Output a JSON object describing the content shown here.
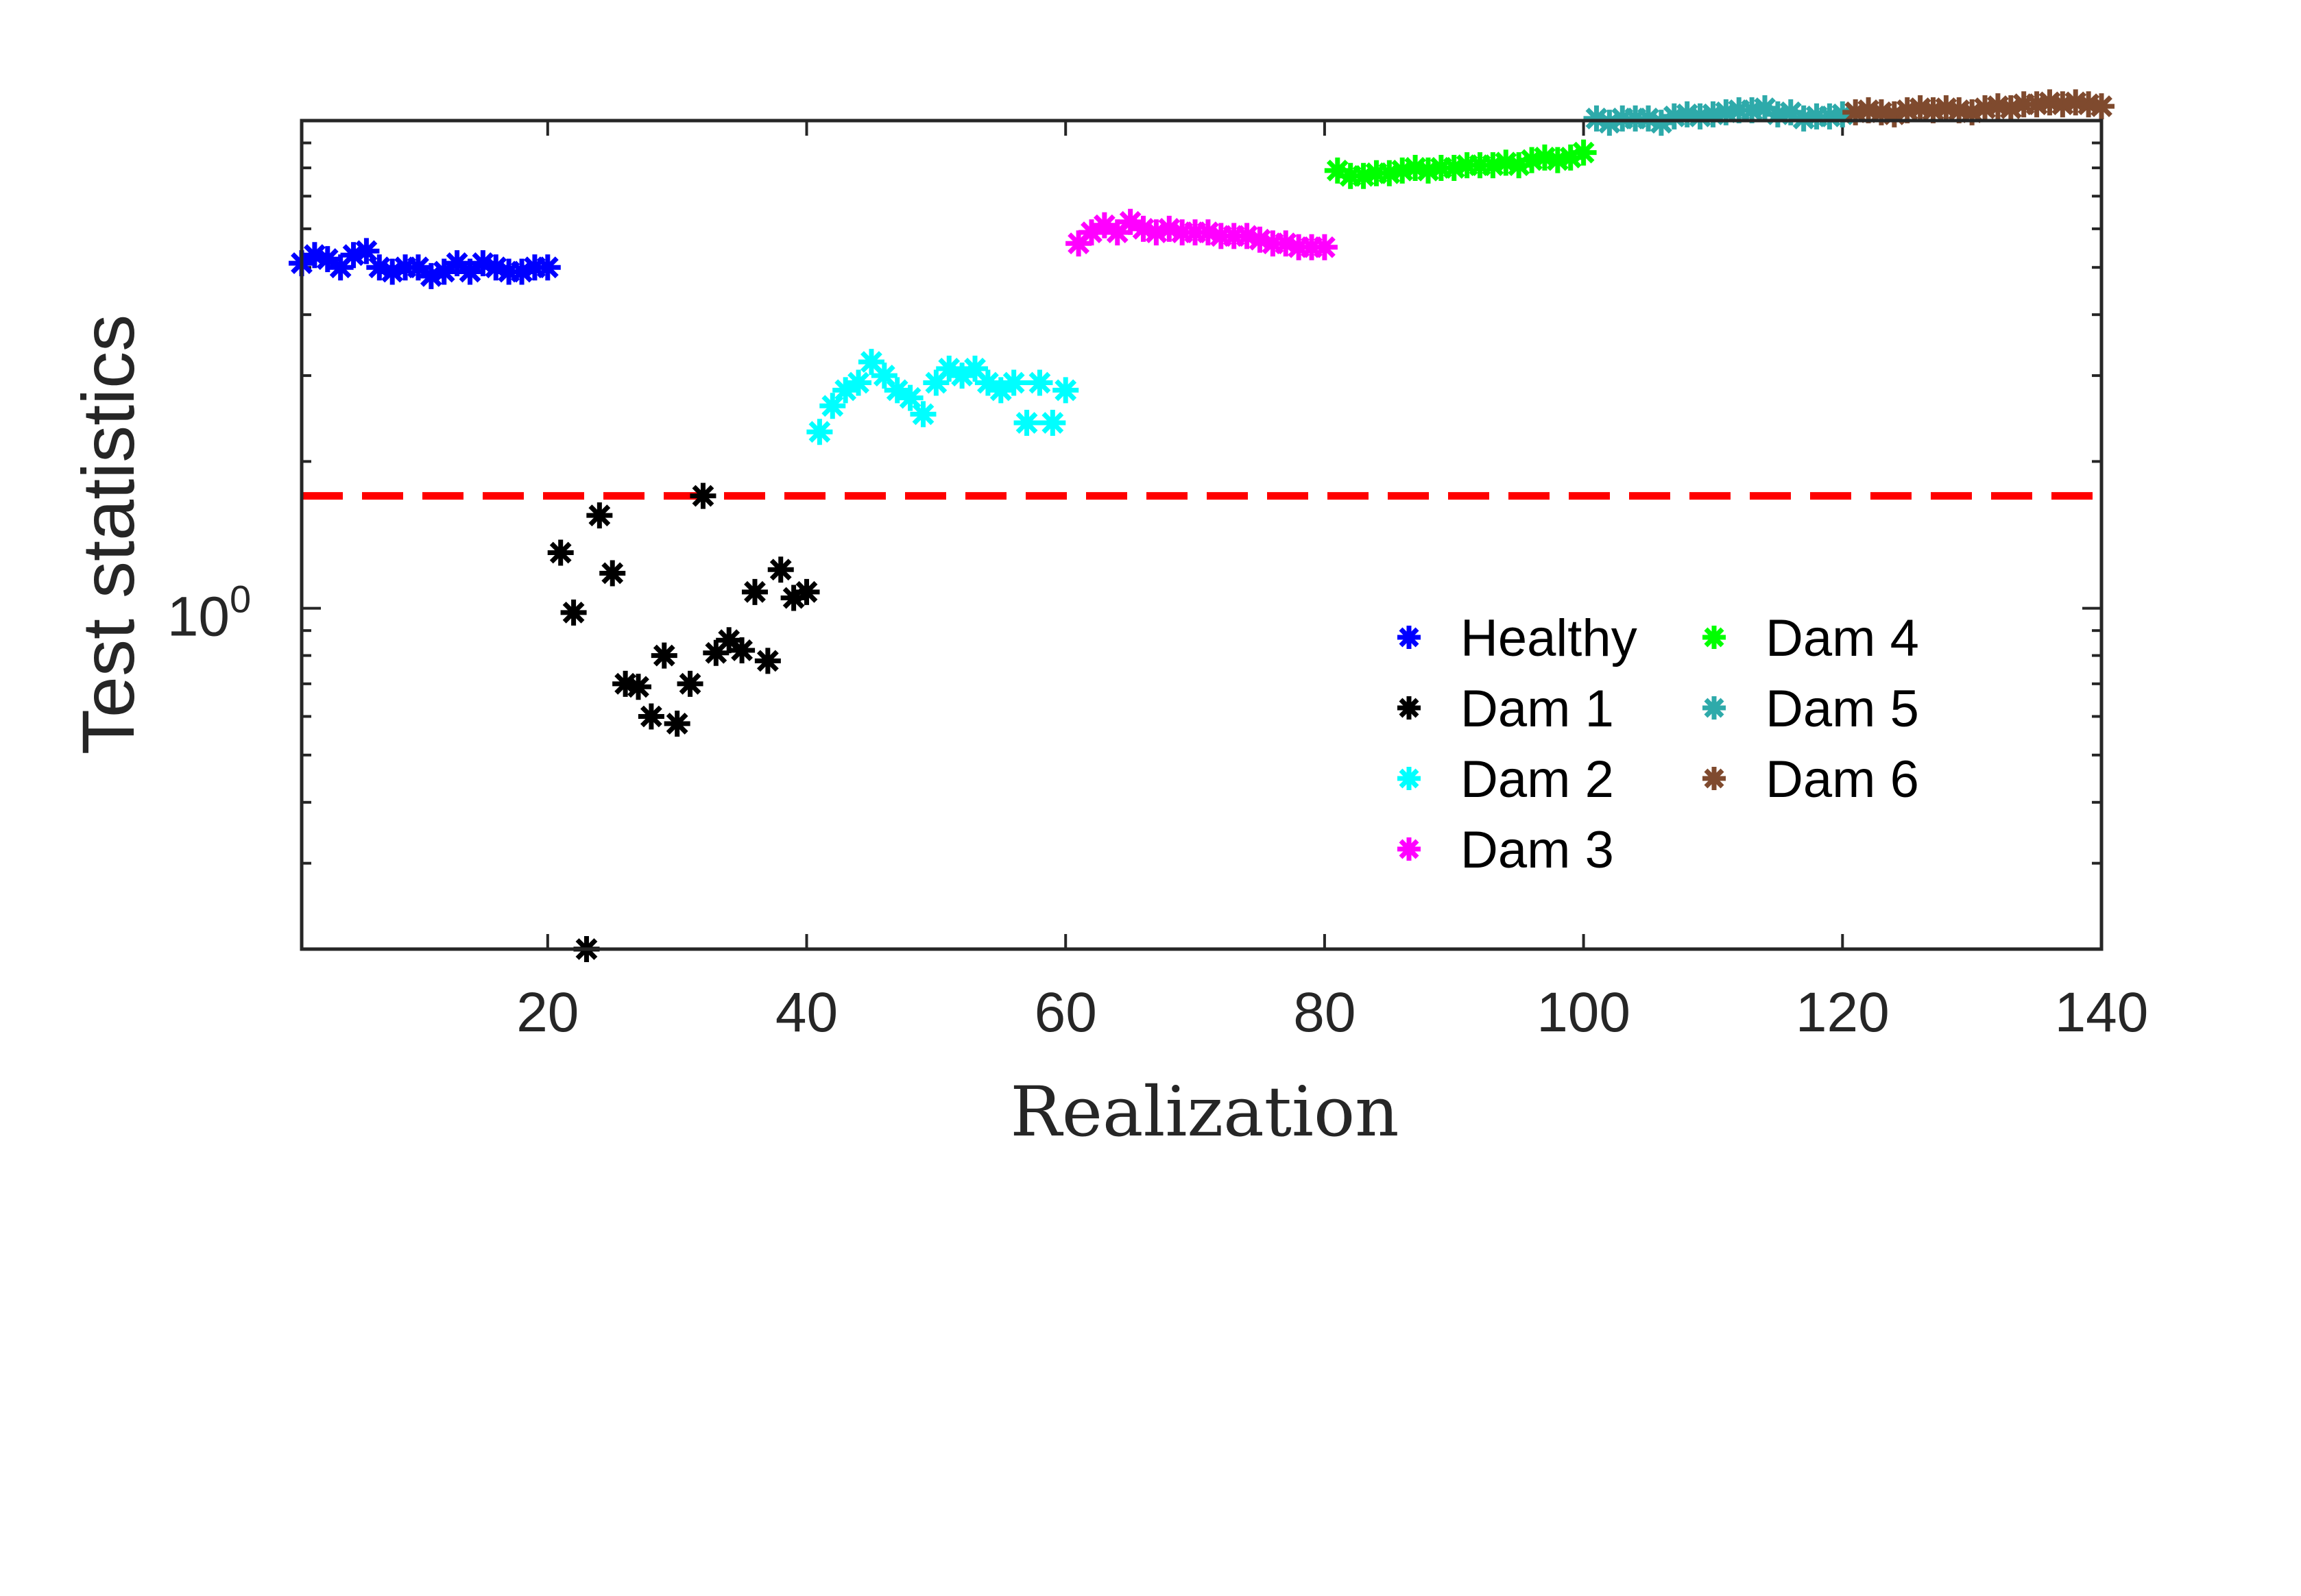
{
  "chart_data": {
    "type": "scatter",
    "title": "",
    "xlabel": "Realization",
    "ylabel": "Test statistics",
    "xlim": [
      1,
      140
    ],
    "ylim": [
      0.2,
      10
    ],
    "yscale": "log",
    "xticks": [
      20,
      40,
      60,
      80,
      100,
      120,
      140
    ],
    "xtick_labels": [
      "20",
      "40",
      "60",
      "80",
      "100",
      "120",
      "140"
    ],
    "ytick_label": {
      "base": "10",
      "exponent": "0",
      "value": 1
    },
    "grid": false,
    "legend_location": "lower-right",
    "threshold": {
      "value": 1.7,
      "color": "#ff0000",
      "style": "dashed"
    },
    "series": [
      {
        "name": "Healthy",
        "color": "#0000ff",
        "x": [
          1,
          2,
          3,
          4,
          5,
          6,
          7,
          8,
          9,
          10,
          11,
          12,
          13,
          14,
          15,
          16,
          17,
          18,
          19,
          20
        ],
        "values": [
          5.1,
          5.3,
          5.2,
          5.0,
          5.3,
          5.4,
          5.0,
          4.9,
          5.0,
          5.0,
          4.8,
          4.9,
          5.1,
          4.9,
          5.1,
          5.0,
          4.9,
          4.9,
          5.0,
          5.0
        ]
      },
      {
        "name": "Dam 1",
        "color": "#000000",
        "x": [
          21,
          22,
          23,
          24,
          25,
          26,
          27,
          28,
          29,
          30,
          31,
          32,
          33,
          34,
          35,
          36,
          37,
          38,
          39,
          40
        ],
        "values": [
          1.3,
          0.98,
          0.2,
          1.55,
          1.18,
          0.7,
          0.69,
          0.6,
          0.8,
          0.58,
          0.7,
          1.7,
          0.81,
          0.86,
          0.82,
          1.08,
          0.78,
          1.2,
          1.05,
          1.08
        ]
      },
      {
        "name": "Dam 2",
        "color": "#00ffff",
        "x": [
          41,
          42,
          43,
          44,
          45,
          46,
          47,
          48,
          49,
          50,
          51,
          52,
          53,
          54,
          55,
          56,
          57,
          58,
          59,
          60
        ],
        "values": [
          2.3,
          2.6,
          2.8,
          2.9,
          3.2,
          3.0,
          2.8,
          2.7,
          2.5,
          2.9,
          3.1,
          3.0,
          3.1,
          2.9,
          2.8,
          2.9,
          2.4,
          2.9,
          2.4,
          2.8
        ]
      },
      {
        "name": "Dam 3",
        "color": "#ff00ff",
        "x": [
          61,
          62,
          63,
          64,
          65,
          66,
          67,
          68,
          69,
          70,
          71,
          72,
          73,
          74,
          75,
          76,
          77,
          78,
          79,
          80
        ],
        "values": [
          5.6,
          5.9,
          6.1,
          5.9,
          6.2,
          6.0,
          5.9,
          6.0,
          5.9,
          5.9,
          5.9,
          5.8,
          5.8,
          5.8,
          5.7,
          5.6,
          5.6,
          5.5,
          5.5,
          5.5
        ]
      },
      {
        "name": "Dam 4",
        "color": "#00ff00",
        "x": [
          81,
          82,
          83,
          84,
          85,
          86,
          87,
          88,
          89,
          90,
          91,
          92,
          93,
          94,
          95,
          96,
          97,
          98,
          99,
          100
        ],
        "values": [
          7.9,
          7.7,
          7.7,
          7.8,
          7.8,
          7.9,
          8.0,
          7.9,
          8.0,
          8.0,
          8.1,
          8.1,
          8.1,
          8.2,
          8.1,
          8.3,
          8.4,
          8.3,
          8.4,
          8.6
        ]
      },
      {
        "name": "Dam 5",
        "color": "#2eaaaa",
        "x": [
          101,
          102,
          103,
          104,
          105,
          106,
          107,
          108,
          109,
          110,
          111,
          112,
          113,
          114,
          115,
          116,
          117,
          118,
          119,
          120
        ],
        "values": [
          10.1,
          9.9,
          10.1,
          10.1,
          10.1,
          9.9,
          10.2,
          10.3,
          10.2,
          10.3,
          10.4,
          10.5,
          10.5,
          10.6,
          10.3,
          10.4,
          10.1,
          10.2,
          10.2,
          10.3
        ]
      },
      {
        "name": "Dam 6",
        "color": "#7f4a2e",
        "x": [
          121,
          122,
          123,
          124,
          125,
          126,
          127,
          128,
          129,
          130,
          131,
          132,
          133,
          134,
          135,
          136,
          137,
          138,
          139,
          140
        ],
        "values": [
          10.4,
          10.5,
          10.4,
          10.3,
          10.5,
          10.6,
          10.5,
          10.6,
          10.5,
          10.4,
          10.6,
          10.7,
          10.6,
          10.8,
          10.8,
          10.9,
          10.8,
          10.9,
          10.8,
          10.7
        ]
      }
    ]
  }
}
